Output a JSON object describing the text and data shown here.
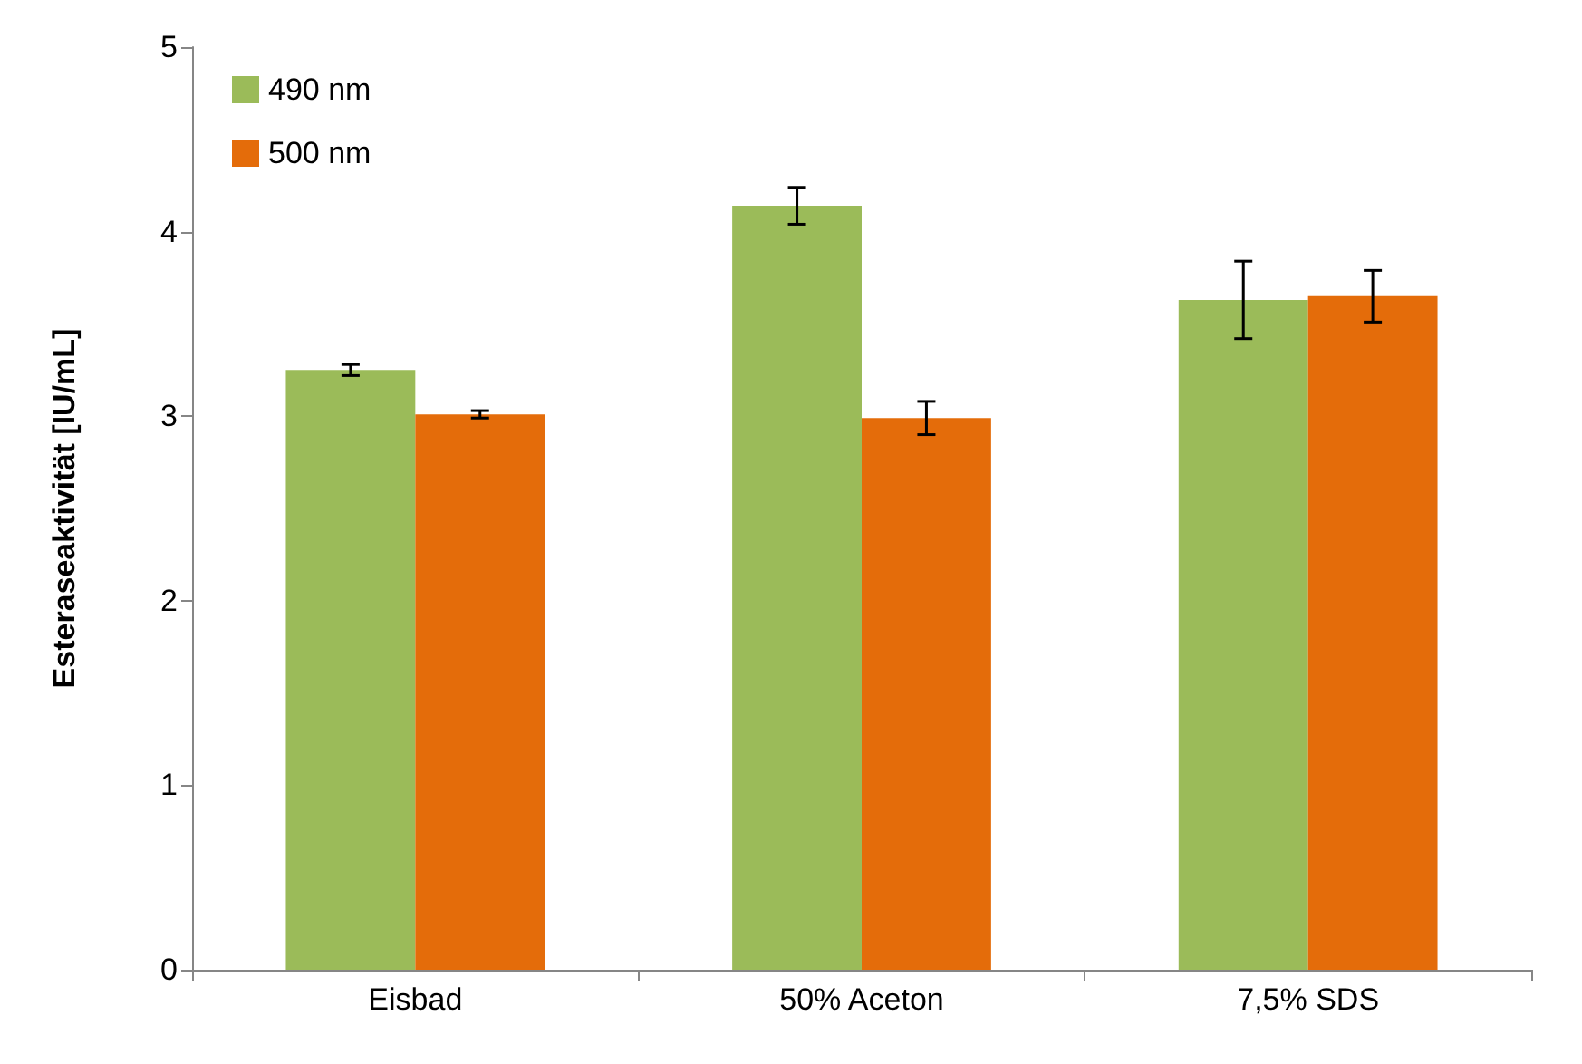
{
  "chart_data": {
    "type": "bar",
    "ylabel": "Esteraseaktivität [IU/mL]",
    "categories": [
      "Eisbad",
      "50% Aceton",
      "7,5% SDS"
    ],
    "series": [
      {
        "name": "490 nm",
        "color": "#9bbb59",
        "values": [
          3.25,
          4.14,
          3.63
        ],
        "errors": [
          0.03,
          0.1,
          0.21
        ]
      },
      {
        "name": "500 nm",
        "color": "#e46c0a",
        "values": [
          3.01,
          2.99,
          3.65
        ],
        "errors": [
          0.02,
          0.09,
          0.14
        ]
      }
    ],
    "ylim": [
      0,
      5
    ],
    "yticks": [
      0,
      1,
      2,
      3,
      4,
      5
    ],
    "grid": false,
    "legend": "top left"
  }
}
